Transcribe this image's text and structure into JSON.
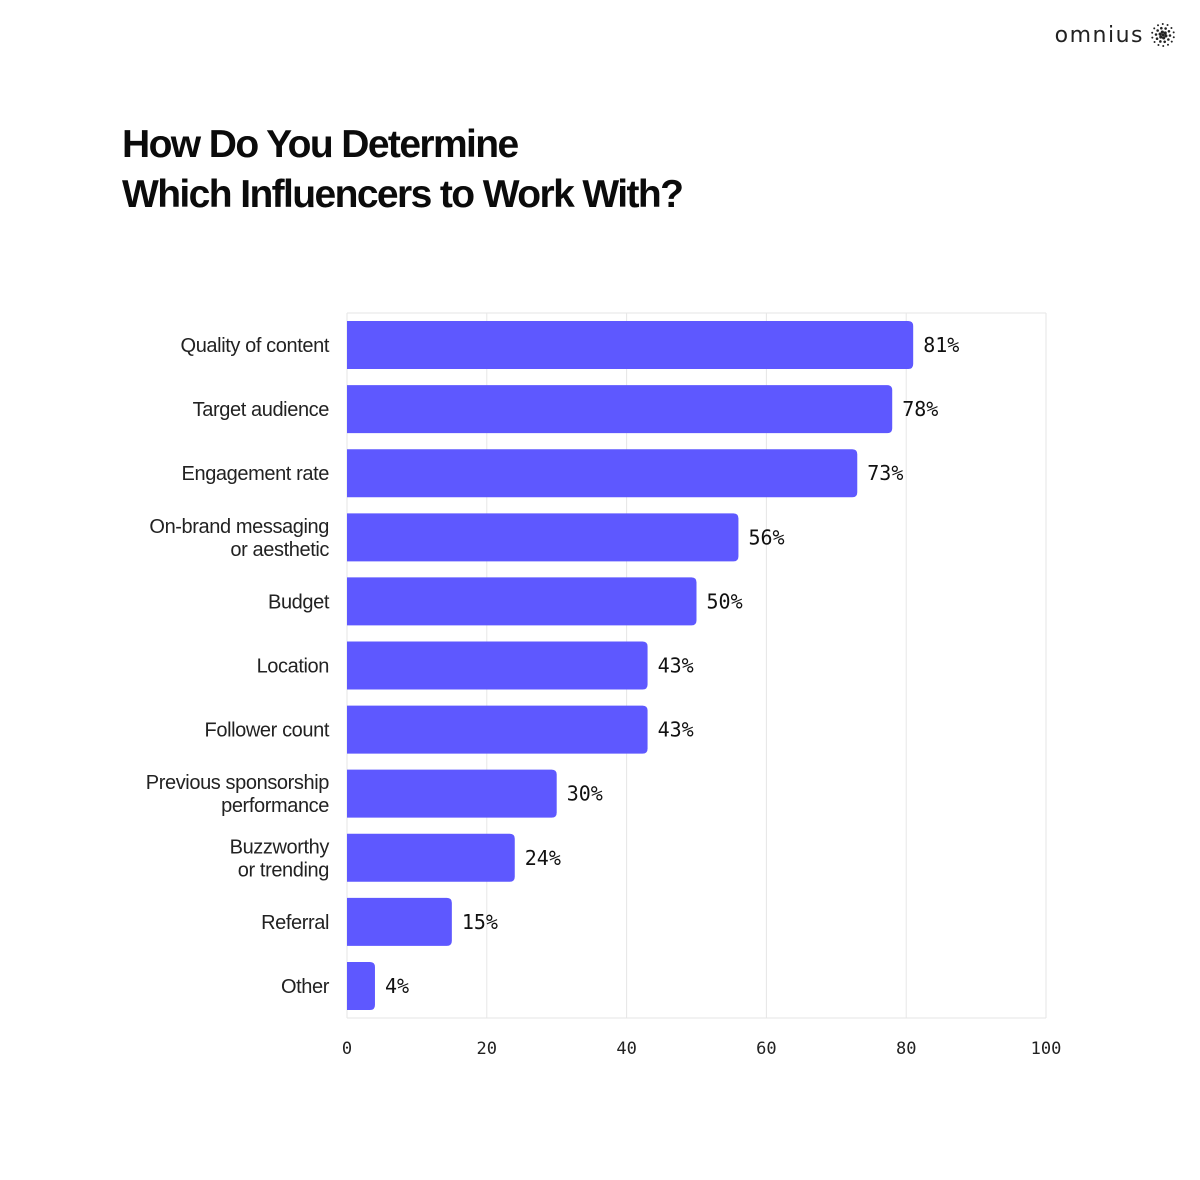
{
  "brand": {
    "name": "omnius",
    "icon": "sunburst-dots-icon"
  },
  "title_lines": [
    "How Do You Determine",
    "Which Influencers to Work With?"
  ],
  "chart_data": {
    "type": "bar",
    "orientation": "horizontal",
    "categories": [
      [
        "Quality of content"
      ],
      [
        "Target audience"
      ],
      [
        "Engagement rate"
      ],
      [
        "On-brand messaging",
        "or aesthetic"
      ],
      [
        "Budget"
      ],
      [
        "Location"
      ],
      [
        "Follower count"
      ],
      [
        "Previous sponsorship",
        "performance"
      ],
      [
        "Buzzworthy",
        "or trending"
      ],
      [
        "Referral"
      ],
      [
        "Other"
      ]
    ],
    "values": [
      81,
      78,
      73,
      56,
      50,
      43,
      43,
      30,
      24,
      15,
      4
    ],
    "value_labels": [
      "81%",
      "78%",
      "73%",
      "56%",
      "50%",
      "43%",
      "43%",
      "30%",
      "24%",
      "15%",
      "4%"
    ],
    "xlim": [
      0,
      100
    ],
    "xticks": [
      0,
      20,
      40,
      60,
      80,
      100
    ],
    "grid": true,
    "bar_color": "#5e58ff",
    "grid_color": "#e6e6e6"
  }
}
